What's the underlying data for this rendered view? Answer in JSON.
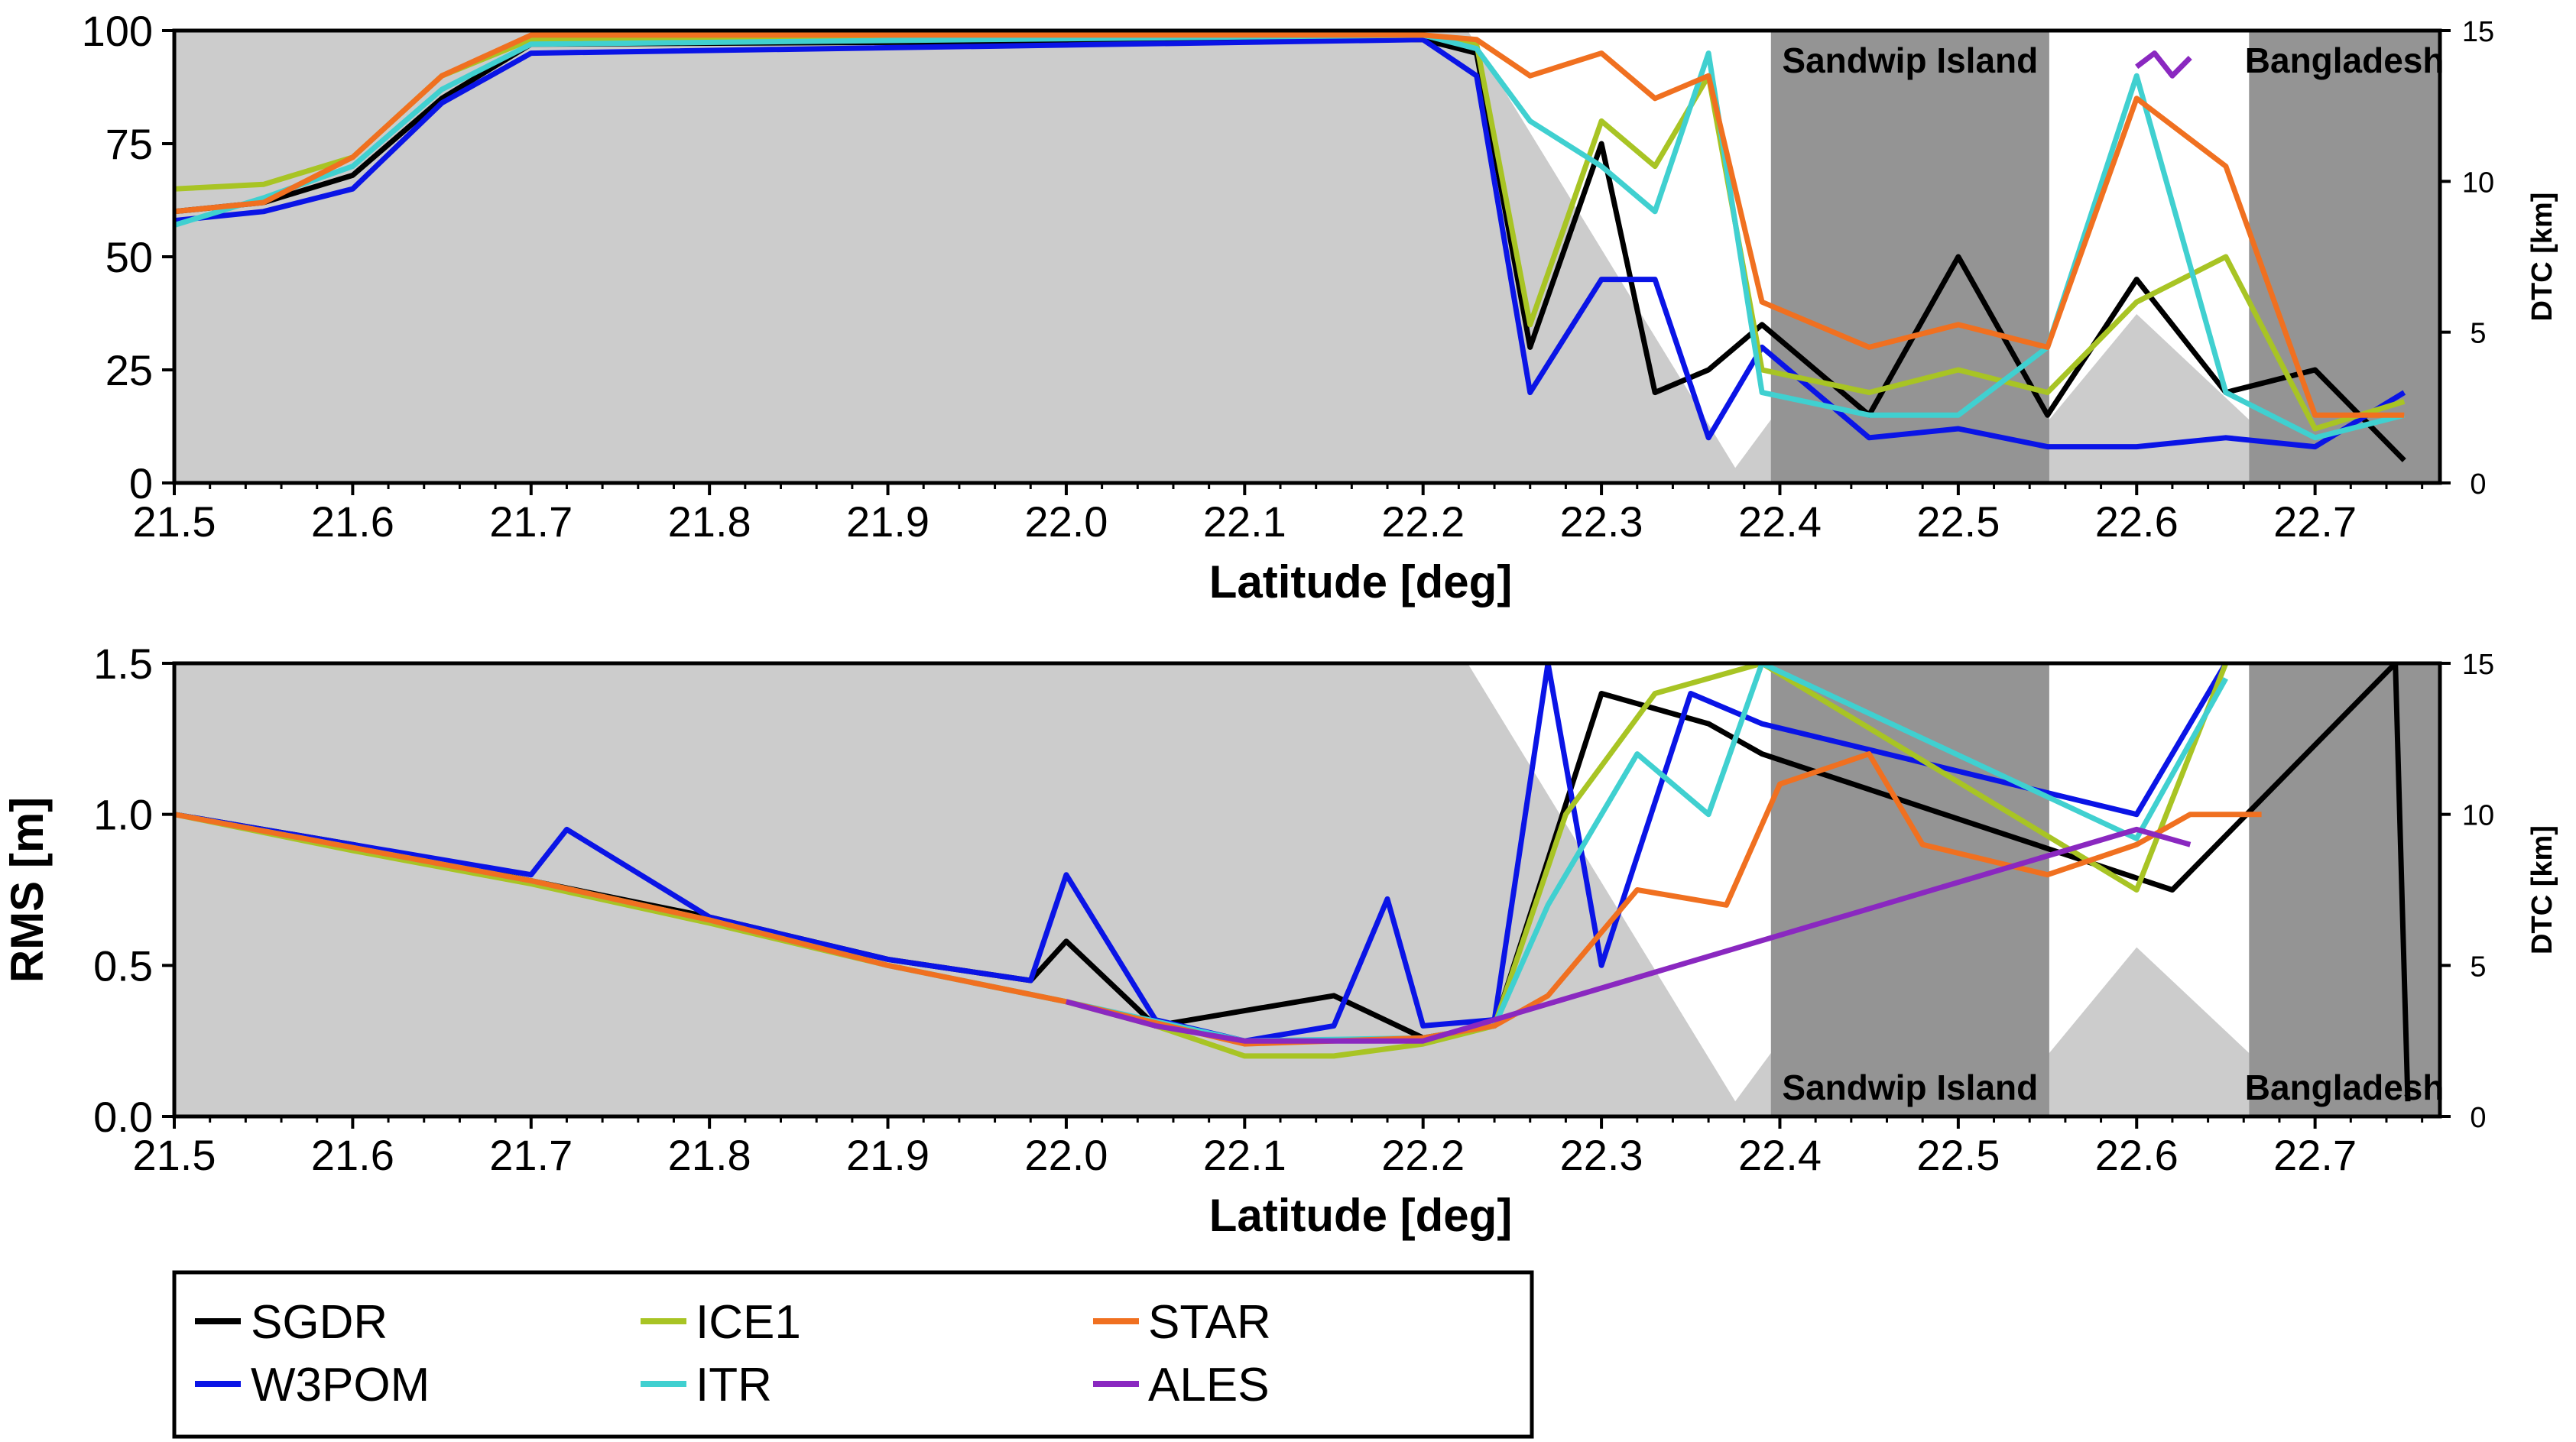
{
  "chart_data": [
    {
      "type": "line",
      "panel": "top",
      "xlabel": "Latitude [deg]",
      "ylabel": "",
      "y2label": "DTC [km]",
      "xlim": [
        21.5,
        22.77
      ],
      "ylim": [
        0,
        100
      ],
      "y2lim": [
        0,
        15
      ],
      "x_ticks": [
        "21.5",
        "21.6",
        "21.7",
        "21.8",
        "21.9",
        "22.0",
        "22.1",
        "22.2",
        "22.3",
        "22.4",
        "22.5",
        "22.6",
        "22.7"
      ],
      "y_ticks": [
        "0",
        "25",
        "50",
        "75",
        "100"
      ],
      "y2_ticks": [
        "0",
        "5",
        "10",
        "15"
      ],
      "regions": [
        {
          "label": "Sandwip Island",
          "x0": 22.395,
          "x1": 22.551
        },
        {
          "label": "Bangladesh",
          "x0": 22.663,
          "x1": 22.77
        }
      ],
      "dtc": {
        "x": [
          21.5,
          22.225,
          22.375,
          22.395,
          22.551,
          22.6,
          22.663
        ],
        "y": [
          15,
          15,
          0.5,
          2.1,
          2.1,
          5.6,
          2.1
        ]
      },
      "series": [
        {
          "name": "SGDR",
          "x": [
            21.5,
            21.55,
            21.6,
            21.65,
            21.7,
            22.2,
            22.23,
            22.26,
            22.3,
            22.33,
            22.36,
            22.39,
            22.45,
            22.5,
            22.55,
            22.6,
            22.65,
            22.7,
            22.75
          ],
          "values": [
            60,
            62,
            68,
            85,
            97,
            98,
            95,
            30,
            75,
            20,
            25,
            35,
            15,
            50,
            15,
            45,
            20,
            25,
            5
          ]
        },
        {
          "name": "W3POM",
          "x": [
            21.5,
            21.55,
            21.6,
            21.65,
            21.7,
            22.2,
            22.23,
            22.26,
            22.3,
            22.33,
            22.36,
            22.39,
            22.45,
            22.5,
            22.55,
            22.6,
            22.65,
            22.7,
            22.75
          ],
          "values": [
            58,
            60,
            65,
            84,
            95,
            98,
            90,
            20,
            45,
            45,
            10,
            30,
            10,
            12,
            8,
            8,
            10,
            8,
            20
          ]
        },
        {
          "name": "ICE1",
          "x": [
            21.5,
            21.55,
            21.6,
            21.65,
            21.7,
            22.2,
            22.23,
            22.26,
            22.3,
            22.33,
            22.36,
            22.39,
            22.45,
            22.5,
            22.55,
            22.6,
            22.65,
            22.7,
            22.75
          ],
          "values": [
            65,
            66,
            72,
            90,
            98,
            99,
            97,
            35,
            80,
            70,
            90,
            25,
            20,
            25,
            20,
            40,
            50,
            12,
            18
          ]
        },
        {
          "name": "ITR",
          "x": [
            21.5,
            21.55,
            21.6,
            21.65,
            21.7,
            22.2,
            22.23,
            22.26,
            22.3,
            22.33,
            22.36,
            22.39,
            22.45,
            22.5,
            22.55,
            22.6,
            22.65,
            22.7,
            22.75
          ],
          "values": [
            57,
            63,
            70,
            87,
            97,
            99,
            96,
            80,
            70,
            60,
            95,
            20,
            15,
            15,
            30,
            90,
            20,
            10,
            15
          ]
        },
        {
          "name": "STAR",
          "x": [
            21.5,
            21.55,
            21.6,
            21.65,
            21.7,
            22.2,
            22.23,
            22.26,
            22.3,
            22.33,
            22.36,
            22.39,
            22.45,
            22.5,
            22.55,
            22.6,
            22.65,
            22.7,
            22.75
          ],
          "values": [
            60,
            62,
            72,
            90,
            99,
            99,
            98,
            90,
            95,
            85,
            90,
            40,
            30,
            35,
            30,
            85,
            70,
            15,
            15
          ]
        },
        {
          "name": "ALES",
          "x": [
            22.6,
            22.61,
            22.62,
            22.63
          ],
          "values": [
            92,
            95,
            90,
            94
          ]
        }
      ]
    },
    {
      "type": "line",
      "panel": "bottom",
      "xlabel": "Latitude [deg]",
      "ylabel": "RMS [m]",
      "y2label": "DTC [km]",
      "xlim": [
        21.5,
        22.77
      ],
      "ylim": [
        0,
        1.5
      ],
      "y2lim": [
        0,
        15
      ],
      "x_ticks": [
        "21.5",
        "21.6",
        "21.7",
        "21.8",
        "21.9",
        "22.0",
        "22.1",
        "22.2",
        "22.3",
        "22.4",
        "22.5",
        "22.6",
        "22.7"
      ],
      "y_ticks": [
        "0.0",
        "0.5",
        "1.0",
        "1.5"
      ],
      "y2_ticks": [
        "0",
        "5",
        "10",
        "15"
      ],
      "regions": [
        {
          "label": "Sandwip Island",
          "x0": 22.395,
          "x1": 22.551
        },
        {
          "label": "Bangladesh",
          "x0": 22.663,
          "x1": 22.77
        }
      ],
      "dtc": {
        "x": [
          21.5,
          22.225,
          22.375,
          22.395,
          22.551,
          22.6,
          22.663
        ],
        "y": [
          15,
          15,
          0.5,
          2.1,
          2.1,
          5.6,
          2.1
        ]
      },
      "series": [
        {
          "name": "SGDR",
          "x": [
            21.5,
            21.6,
            21.7,
            21.8,
            21.9,
            21.98,
            22.0,
            22.05,
            22.1,
            22.15,
            22.2,
            22.24,
            22.3,
            22.36,
            22.39,
            22.62,
            22.745,
            22.752
          ],
          "values": [
            1.0,
            0.9,
            0.78,
            0.66,
            0.52,
            0.45,
            0.58,
            0.3,
            0.35,
            0.4,
            0.26,
            0.3,
            1.4,
            1.3,
            1.2,
            0.75,
            1.5,
            0.05
          ]
        },
        {
          "name": "W3POM",
          "x": [
            21.5,
            21.6,
            21.7,
            21.72,
            21.8,
            21.9,
            21.98,
            22.0,
            22.05,
            22.1,
            22.15,
            22.18,
            22.2,
            22.24,
            22.27,
            22.3,
            22.35,
            22.39,
            22.6,
            22.65
          ],
          "values": [
            1.0,
            0.9,
            0.8,
            0.95,
            0.66,
            0.52,
            0.45,
            0.8,
            0.32,
            0.25,
            0.3,
            0.72,
            0.3,
            0.32,
            1.5,
            0.5,
            1.4,
            1.3,
            1.0,
            1.5
          ]
        },
        {
          "name": "ICE1",
          "x": [
            21.5,
            21.6,
            21.7,
            21.8,
            21.9,
            22.0,
            22.05,
            22.1,
            22.15,
            22.2,
            22.24,
            22.28,
            22.33,
            22.39,
            22.6,
            22.65
          ],
          "values": [
            1.0,
            0.88,
            0.77,
            0.64,
            0.5,
            0.38,
            0.3,
            0.2,
            0.2,
            0.24,
            0.3,
            1.0,
            1.4,
            1.5,
            0.75,
            1.5
          ]
        },
        {
          "name": "ITR",
          "x": [
            21.5,
            21.6,
            21.7,
            21.8,
            21.9,
            22.0,
            22.1,
            22.2,
            22.24,
            22.27,
            22.32,
            22.36,
            22.39,
            22.6,
            22.65
          ],
          "values": [
            1.0,
            0.89,
            0.78,
            0.65,
            0.5,
            0.38,
            0.25,
            0.26,
            0.3,
            0.7,
            1.2,
            1.0,
            1.5,
            0.92,
            1.45
          ]
        },
        {
          "name": "STAR",
          "x": [
            21.5,
            21.6,
            21.7,
            21.8,
            21.9,
            22.0,
            22.1,
            22.2,
            22.24,
            22.27,
            22.32,
            22.37,
            22.4,
            22.45,
            22.48,
            22.55,
            22.6,
            22.63,
            22.67
          ],
          "values": [
            1.0,
            0.89,
            0.78,
            0.65,
            0.5,
            0.38,
            0.24,
            0.26,
            0.3,
            0.4,
            0.75,
            0.7,
            1.1,
            1.2,
            0.9,
            0.8,
            0.9,
            1.0,
            1.0
          ]
        },
        {
          "name": "ALES",
          "x": [
            22.0,
            22.05,
            22.1,
            22.15,
            22.2,
            22.6,
            22.63
          ],
          "values": [
            0.38,
            0.3,
            0.25,
            0.25,
            0.25,
            0.95,
            0.9
          ]
        }
      ]
    }
  ],
  "legend": [
    {
      "name": "SGDR",
      "color": "#000000"
    },
    {
      "name": "ICE1",
      "color": "#a8c424"
    },
    {
      "name": "STAR",
      "color": "#f07020"
    },
    {
      "name": "W3POM",
      "color": "#0a14e6"
    },
    {
      "name": "ITR",
      "color": "#40d0d0"
    },
    {
      "name": "ALES",
      "color": "#8a28c0"
    }
  ],
  "colors": {
    "SGDR": "#000000",
    "W3POM": "#0a14e6",
    "ICE1": "#a8c424",
    "ITR": "#40d0d0",
    "STAR": "#f07020",
    "ALES": "#8a28c0",
    "dtc_fill": "#cccccc",
    "land_fill": "#949494"
  }
}
